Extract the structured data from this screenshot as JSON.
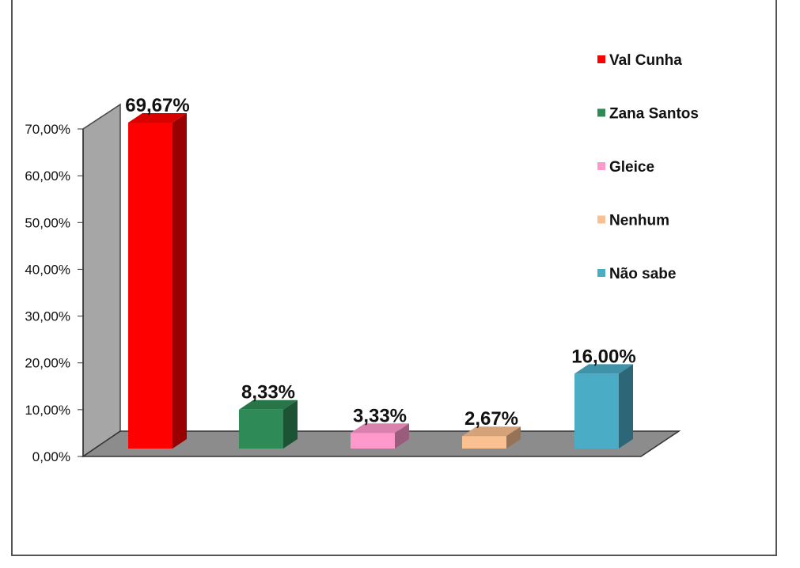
{
  "chart_data": {
    "type": "bar",
    "categories": [
      "Val Cunha",
      "Zana Santos",
      "Gleice",
      "Nenhum",
      "Não sabe"
    ],
    "values": [
      69.67,
      8.33,
      3.33,
      2.67,
      16.0
    ],
    "data_labels": [
      "69,67%",
      "8,33%",
      "3,33%",
      "2,67%",
      "16,00%"
    ],
    "colors": [
      "#ff0000",
      "#2e8b57",
      "#ff99cc",
      "#fac090",
      "#4bacc6"
    ],
    "ylim": [
      0,
      70
    ],
    "yticks": [
      {
        "value": 0,
        "label": "0,00%"
      },
      {
        "value": 10,
        "label": "10,00%"
      },
      {
        "value": 20,
        "label": "20,00%"
      },
      {
        "value": 30,
        "label": "30,00%"
      },
      {
        "value": 40,
        "label": "40,00%"
      },
      {
        "value": 50,
        "label": "50,00%"
      },
      {
        "value": 60,
        "label": "60,00%"
      },
      {
        "value": 70,
        "label": "70,00%"
      }
    ],
    "legend": {
      "position": "right"
    },
    "grid": false,
    "projection": "3d"
  }
}
